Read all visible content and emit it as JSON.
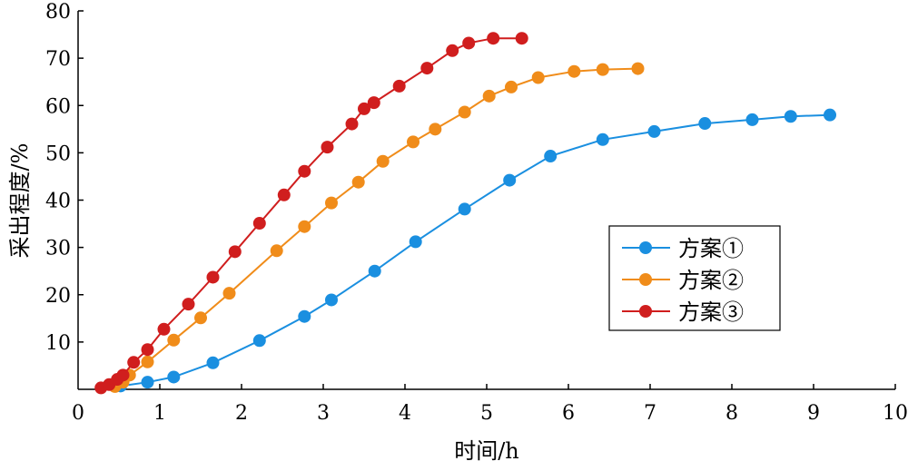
{
  "chart_data": {
    "type": "line",
    "xlabel": "时间/h",
    "ylabel": "采出程度/%",
    "xlim": [
      0,
      10
    ],
    "ylim": [
      0,
      80
    ],
    "xticks": [
      "0",
      "1",
      "2",
      "3",
      "4",
      "5",
      "6",
      "7",
      "8",
      "9",
      "10"
    ],
    "yticks": [
      "10",
      "20",
      "30",
      "40",
      "50",
      "60",
      "70",
      "80"
    ],
    "grid": false,
    "legend_position": "right",
    "series": [
      {
        "name": "方案①",
        "color": "#1a8fe0",
        "x": [
          0.52,
          0.85,
          1.17,
          1.65,
          2.22,
          2.77,
          3.1,
          3.63,
          4.13,
          4.73,
          5.28,
          5.78,
          6.42,
          7.05,
          7.67,
          8.25,
          8.72,
          9.2
        ],
        "y": [
          0.7,
          1.5,
          2.6,
          5.6,
          10.3,
          15.4,
          18.9,
          25.0,
          31.2,
          38.1,
          44.2,
          49.3,
          52.8,
          54.5,
          56.2,
          57.0,
          57.7,
          58.0
        ]
      },
      {
        "name": "方案②",
        "color": "#f08c1a",
        "x": [
          0.45,
          0.55,
          0.63,
          0.85,
          1.17,
          1.5,
          1.85,
          2.43,
          2.77,
          3.1,
          3.43,
          3.73,
          4.1,
          4.37,
          4.73,
          5.03,
          5.3,
          5.63,
          6.07,
          6.42,
          6.85
        ],
        "y": [
          0.6,
          1.5,
          3.0,
          5.8,
          10.4,
          15.1,
          20.3,
          29.3,
          34.4,
          39.4,
          43.8,
          48.2,
          52.3,
          55.0,
          58.6,
          62.0,
          63.9,
          65.9,
          67.2,
          67.6,
          67.8
        ]
      },
      {
        "name": "方案③",
        "color": "#d01e1e",
        "x": [
          0.28,
          0.38,
          0.48,
          0.55,
          0.68,
          0.85,
          1.05,
          1.35,
          1.65,
          1.92,
          2.22,
          2.52,
          2.77,
          3.05,
          3.35,
          3.5,
          3.62,
          3.93,
          4.27,
          4.58,
          4.78,
          5.08,
          5.43
        ],
        "y": [
          0.3,
          1.0,
          2.1,
          3.0,
          5.7,
          8.4,
          12.7,
          18.0,
          23.7,
          29.1,
          35.1,
          41.1,
          46.1,
          51.2,
          56.1,
          59.3,
          60.6,
          64.1,
          67.9,
          71.6,
          73.2,
          74.2,
          74.2
        ]
      }
    ]
  }
}
